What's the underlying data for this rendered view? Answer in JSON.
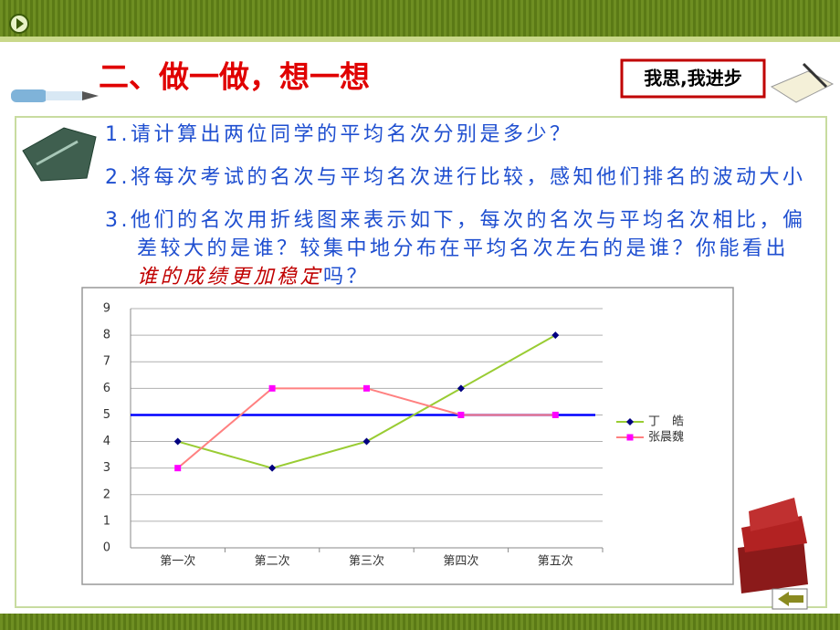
{
  "header": {
    "title": "二、做一做，想一想",
    "badge": "我思,我进步"
  },
  "questions": [
    {
      "number": "1.",
      "lines": [
        "请计算出两位同学的平均名次分别是多少？"
      ]
    },
    {
      "number": "2.",
      "lines": [
        "将每次考试的名次与平均名次进行比较，感知他们排名的波动大小"
      ]
    },
    {
      "number": "3.",
      "lines": [
        "他们的名次用折线图来表示如下，每次的名次与平均名次相比，偏",
        "差较大的是谁？较集中地分布在平均名次左右的是谁？你能看出"
      ],
      "emphasis": "谁的成绩更加稳定",
      "tail": "吗？"
    }
  ],
  "chart_data": {
    "type": "line",
    "categories": [
      "第一次",
      "第二次",
      "第三次",
      "第四次",
      "第五次"
    ],
    "series": [
      {
        "name": "丁　皓",
        "color": "#99cc33",
        "marker_color": "#000080",
        "marker": "diamond",
        "values": [
          4,
          3,
          4,
          6,
          8
        ]
      },
      {
        "name": "张晨魏",
        "color": "#ff8080",
        "marker_color": "#ff00ff",
        "marker": "square",
        "values": [
          3,
          6,
          6,
          5,
          5
        ]
      }
    ],
    "reference_line": {
      "value": 5,
      "color": "#0000ff"
    },
    "ylim": [
      0,
      9
    ],
    "yticks": [
      0,
      1,
      2,
      3,
      4,
      5,
      6,
      7,
      8,
      9
    ],
    "grid": true,
    "legend": "right"
  }
}
